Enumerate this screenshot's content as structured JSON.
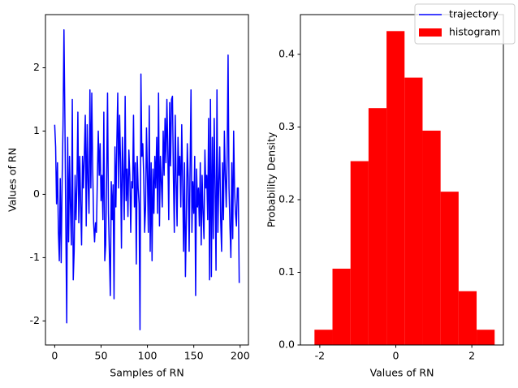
{
  "chart_data": [
    {
      "type": "line",
      "xlabel": "Samples of RN",
      "ylabel": "Values of RN",
      "xlim": [
        -9.95,
        208.95
      ],
      "xticks": [
        0,
        50,
        100,
        150,
        200
      ],
      "ylim": [
        -2.38,
        2.84
      ],
      "yticks": [
        -2,
        -1,
        0,
        1,
        2
      ],
      "series": [
        {
          "name": "trajectory",
          "color": "#0000ff",
          "values": [
            1.1,
            0.75,
            -0.15,
            0.5,
            -0.6,
            -1.05,
            0.25,
            -1.08,
            0.2,
            1.1,
            2.6,
            1.2,
            -0.5,
            -2.03,
            0.9,
            -0.75,
            0.6,
            -0.2,
            -0.8,
            1.5,
            -1.35,
            -0.9,
            0.3,
            -0.4,
            0.15,
            1.3,
            -0.45,
            0.6,
            -0.15,
            -0.8,
            0.6,
            0.1,
            0.65,
            1.25,
            -0.5,
            1.1,
            0.2,
            -0.3,
            1.65,
            0.1,
            1.6,
            0.4,
            -0.45,
            -0.75,
            -0.45,
            -0.6,
            0.25,
            1.0,
            0.3,
            0.8,
            -0.1,
            0.3,
            -0.4,
            1.3,
            -1.05,
            -0.8,
            0.25,
            1.6,
            -0.3,
            -0.95,
            -1.6,
            0.2,
            -0.4,
            0.15,
            -1.65,
            0.75,
            -0.2,
            0.8,
            1.6,
            0.1,
            1.25,
            0.5,
            -0.85,
            0.9,
            0.3,
            -0.4,
            1.55,
            -0.1,
            0.4,
            -0.35,
            0.7,
            0.3,
            -0.6,
            0.2,
            0.1,
            1.25,
            -0.2,
            0.5,
            -1.1,
            0.6,
            0.1,
            -0.15,
            -2.14,
            1.9,
            0.6,
            0.8,
            0.3,
            -0.6,
            -0.2,
            1.05,
            0.3,
            -0.6,
            1.4,
            -0.9,
            0.5,
            -1.05,
            0.4,
            -0.3,
            0.6,
            0.1,
            0.9,
            -0.3,
            1.6,
            -0.5,
            0.6,
            0.2,
            -0.2,
            1.0,
            0.3,
            1.2,
            0.5,
            1.5,
            0.7,
            -0.4,
            1.45,
            0.45,
            1.5,
            1.55,
            0.3,
            -0.6,
            1.25,
            0.2,
            -0.5,
            0.9,
            0.3,
            0.6,
            -0.2,
            1.1,
            0.2,
            -0.9,
            0.5,
            -1.3,
            -0.4,
            0.8,
            0.25,
            -0.9,
            0.4,
            1.65,
            -0.6,
            0.2,
            -0.3,
            0.6,
            -1.6,
            0.4,
            -0.2,
            0.1,
            -0.5,
            0.5,
            -0.8,
            0.3,
            -0.3,
            -0.7,
            0.7,
            0.1,
            0.3,
            -0.4,
            1.2,
            -1.35,
            1.5,
            -1.3,
            0.9,
            -0.7,
            1.2,
            0.1,
            -1.2,
            1.65,
            -0.6,
            0.2,
            0.75,
            -0.4,
            -0.9,
            0.5,
            -0.4,
            1.0,
            0.3,
            -0.2,
            0.6,
            2.2,
            0.1,
            -0.5,
            -1.0,
            0.5,
            -0.7,
            1.0,
            0.05,
            -0.3,
            -0.5,
            0.1,
            0.1,
            -1.4
          ]
        }
      ]
    },
    {
      "type": "histogram",
      "xlabel": "Values of RN",
      "ylabel": "Probability Density",
      "xlim": [
        -2.51,
        2.83
      ],
      "xticks": [
        -2,
        0,
        2
      ],
      "ylim": [
        0,
        0.4547
      ],
      "yticks": [
        {
          "value": 0,
          "label": "0.0"
        },
        {
          "value": 0.1,
          "label": "0.1"
        },
        {
          "value": 0.2,
          "label": "0.2"
        },
        {
          "value": 0.3,
          "label": "0.3"
        },
        {
          "value": 0.4,
          "label": "0.4"
        }
      ],
      "bins": [
        -2.14,
        -1.666,
        -1.192,
        -0.718,
        -0.244,
        0.23,
        0.704,
        1.178,
        1.652,
        2.126,
        2.6
      ],
      "series": [
        {
          "name": "histogram",
          "color": "#ff0000",
          "values": [
            0.021,
            0.105,
            0.253,
            0.326,
            0.432,
            0.368,
            0.295,
            0.211,
            0.074,
            0.021
          ]
        }
      ]
    }
  ]
}
